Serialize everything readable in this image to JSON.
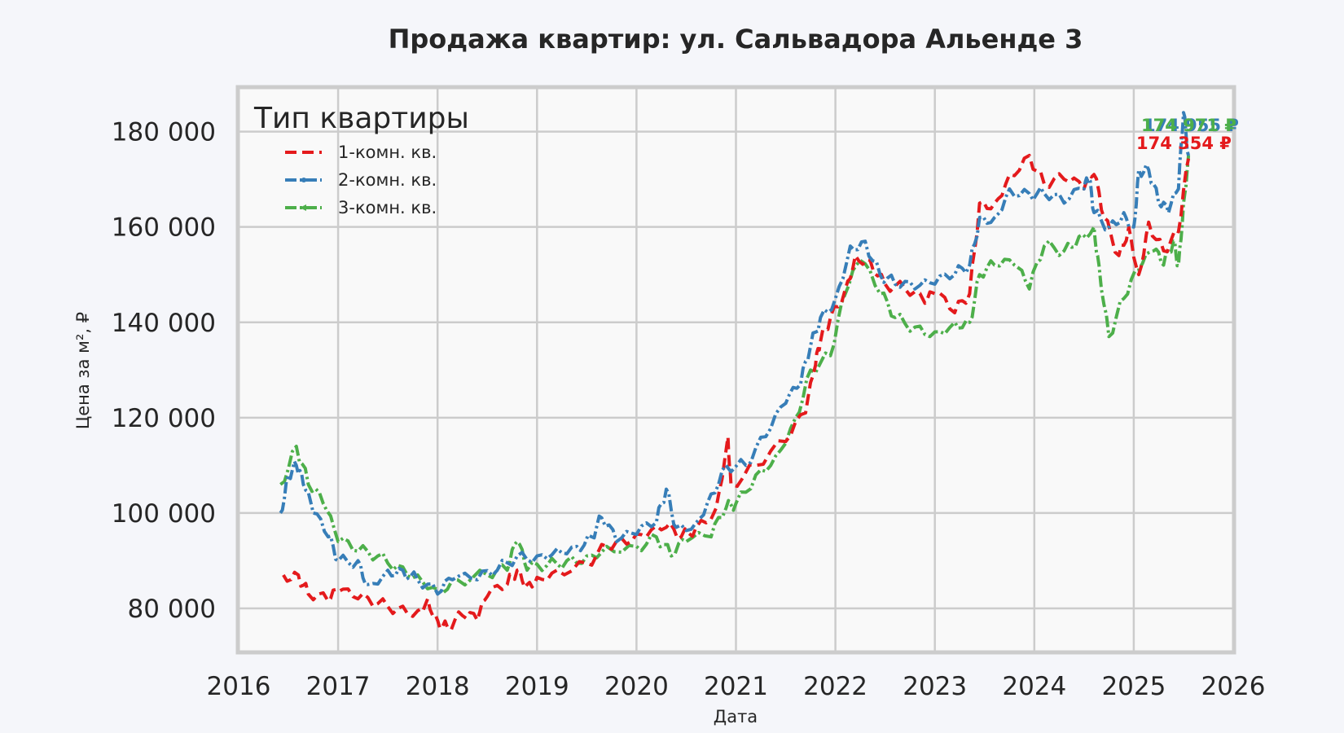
{
  "chart_data": {
    "type": "line",
    "title": "Продажа квартир: ул. Сальвадора Альенде 3",
    "xlabel": "Дата",
    "ylabel": "Цена за м², ₽",
    "xlim": [
      2016,
      2026
    ],
    "ylim": [
      70600,
      189500
    ],
    "x_ticks": [
      2016,
      2017,
      2018,
      2019,
      2020,
      2021,
      2022,
      2023,
      2024,
      2025,
      2026
    ],
    "x_tick_labels": [
      "2016",
      "2017",
      "2018",
      "2019",
      "2020",
      "2021",
      "2022",
      "2023",
      "2024",
      "2025",
      "2026"
    ],
    "y_ticks": [
      80000,
      100000,
      120000,
      140000,
      160000,
      180000
    ],
    "y_tick_labels": [
      "80 000",
      "100 000",
      "120 000",
      "140 000",
      "160 000",
      "180 000"
    ],
    "grid": true,
    "legend": {
      "title": "Тип квартиры",
      "position": "upper left",
      "entries": [
        "1-комн. кв.",
        "2-комн. кв.",
        "3-комн. кв."
      ]
    },
    "series": [
      {
        "name": "1-комн. кв.",
        "color": "#e41a1c",
        "style": "dashed",
        "end_label": "174 354 ₽",
        "x": [
          2016.45,
          2016.6,
          2016.7,
          2016.9,
          2017.0,
          2017.2,
          2017.4,
          2017.6,
          2017.8,
          2017.9,
          2018.0,
          2018.1,
          2018.25,
          2018.4,
          2018.5,
          2018.7,
          2018.8,
          2018.9,
          2019.0,
          2019.2,
          2019.5,
          2019.7,
          2019.9,
          2020.1,
          2020.3,
          2020.45,
          2020.6,
          2020.8,
          2020.92,
          2020.95,
          2021.2,
          2021.5,
          2021.7,
          2021.8,
          2021.85,
          2021.95,
          2022.1,
          2022.2,
          2022.35,
          2022.5,
          2022.7,
          2022.9,
          2023.0,
          2023.2,
          2023.35,
          2023.45,
          2023.6,
          2023.75,
          2023.95,
          2024.1,
          2024.3,
          2024.5,
          2024.6,
          2024.7,
          2024.85,
          2024.95,
          2025.05,
          2025.15,
          2025.3,
          2025.45,
          2025.55
        ],
        "values": [
          87000,
          87000,
          83000,
          81500,
          83500,
          82000,
          81000,
          80000,
          79500,
          82000,
          77500,
          76000,
          78500,
          77500,
          82500,
          85000,
          88000,
          85000,
          86500,
          88000,
          89500,
          93000,
          93500,
          95000,
          97000,
          95000,
          97000,
          101000,
          116000,
          106000,
          110000,
          115000,
          121000,
          131000,
          136000,
          141000,
          147000,
          154000,
          153000,
          148000,
          147000,
          144000,
          146000,
          142000,
          146000,
          165000,
          165000,
          171000,
          175000,
          169000,
          170000,
          168000,
          171000,
          162000,
          154000,
          160000,
          150000,
          161000,
          155000,
          159000,
          174354
        ]
      },
      {
        "name": "2-комн. кв.",
        "color": "#377eb8",
        "style": "dash-dot-marker",
        "end_label": "174 955 ₽",
        "x": [
          2016.42,
          2016.5,
          2016.58,
          2016.65,
          2016.75,
          2016.9,
          2017.0,
          2017.2,
          2017.3,
          2017.5,
          2017.65,
          2017.8,
          2018.0,
          2018.15,
          2018.4,
          2018.6,
          2018.8,
          2019.0,
          2019.2,
          2019.4,
          2019.55,
          2019.65,
          2019.8,
          2020.0,
          2020.2,
          2020.3,
          2020.4,
          2020.6,
          2020.75,
          2020.9,
          2021.1,
          2021.3,
          2021.5,
          2021.65,
          2021.75,
          2021.85,
          2022.0,
          2022.15,
          2022.3,
          2022.45,
          2022.6,
          2022.8,
          2023.0,
          2023.2,
          2023.35,
          2023.45,
          2023.6,
          2023.75,
          2023.95,
          2024.1,
          2024.3,
          2024.5,
          2024.55,
          2024.6,
          2024.75,
          2024.9,
          2025.0,
          2025.05,
          2025.15,
          2025.25,
          2025.35,
          2025.45,
          2025.5,
          2025.55
        ],
        "values": [
          100000,
          108000,
          110000,
          106000,
          100000,
          95000,
          90000,
          90000,
          85000,
          88000,
          88000,
          86000,
          83000,
          86000,
          86000,
          88000,
          91000,
          91000,
          92500,
          93000,
          95000,
          99000,
          94000,
          95500,
          98000,
          105000,
          97000,
          98000,
          104000,
          110000,
          110000,
          116000,
          123000,
          127000,
          135000,
          141000,
          145000,
          156000,
          157000,
          150000,
          148000,
          147000,
          148000,
          150000,
          152000,
          162000,
          162000,
          168000,
          167000,
          167000,
          165000,
          168000,
          170000,
          163000,
          160000,
          163000,
          160000,
          172000,
          172000,
          165000,
          163000,
          168000,
          184000,
          174955
        ]
      },
      {
        "name": "3-комн. кв.",
        "color": "#4daf4a",
        "style": "dash-dot-marker",
        "end_label": "174 971 ₽",
        "x": [
          2016.42,
          2016.58,
          2016.7,
          2016.85,
          2017.0,
          2017.2,
          2017.4,
          2017.6,
          2017.8,
          2018.0,
          2018.2,
          2018.5,
          2018.7,
          2018.8,
          2018.9,
          2019.1,
          2019.3,
          2019.5,
          2019.7,
          2020.0,
          2020.2,
          2020.35,
          2020.5,
          2020.75,
          2020.9,
          2021.0,
          2021.2,
          2021.4,
          2021.6,
          2021.75,
          2021.95,
          2022.1,
          2022.25,
          2022.45,
          2022.6,
          2022.8,
          2023.0,
          2023.2,
          2023.35,
          2023.45,
          2023.6,
          2023.8,
          2023.95,
          2024.1,
          2024.3,
          2024.45,
          2024.6,
          2024.65,
          2024.75,
          2024.9,
          2025.05,
          2025.2,
          2025.3,
          2025.4,
          2025.45,
          2025.5,
          2025.55
        ],
        "values": [
          106000,
          114000,
          106000,
          102000,
          94000,
          92000,
          91000,
          89000,
          87000,
          84000,
          86000,
          87000,
          88000,
          94000,
          88000,
          89000,
          90000,
          91000,
          93000,
          93000,
          95000,
          91000,
          94000,
          95000,
          101000,
          102000,
          108000,
          112000,
          120000,
          130000,
          133000,
          146000,
          153000,
          146000,
          141000,
          139000,
          138000,
          140000,
          140000,
          150000,
          152000,
          152000,
          147000,
          156000,
          155000,
          158000,
          160000,
          152000,
          137000,
          145000,
          151000,
          155000,
          152000,
          157000,
          152000,
          165000,
          174971
        ]
      }
    ]
  }
}
